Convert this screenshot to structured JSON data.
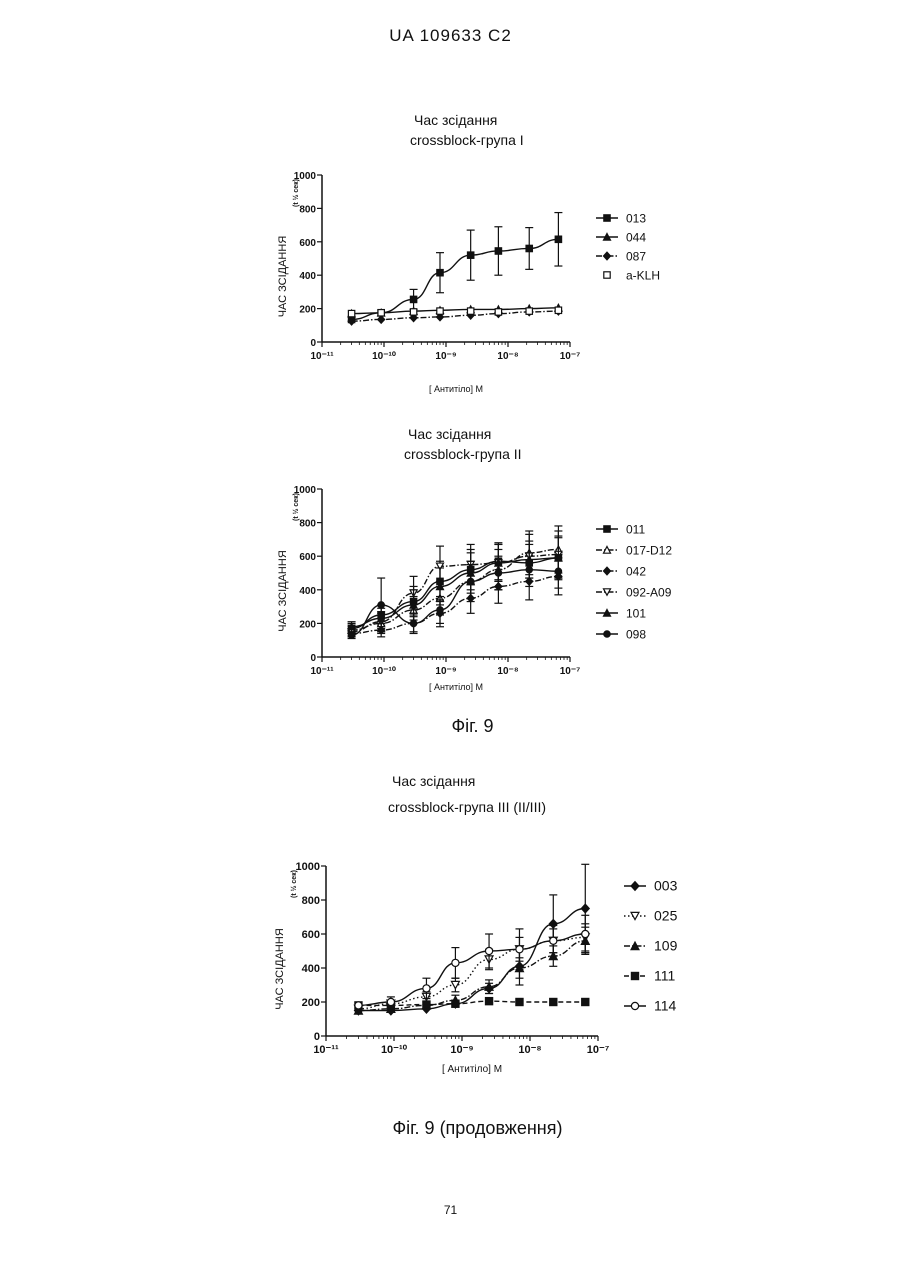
{
  "header": {
    "text": "UA   109633   C2"
  },
  "page_number": "71",
  "captions": {
    "fig": "Фіг. 9",
    "fig_cont": "Фіг. 9 (продовження)"
  },
  "chart_data": [
    {
      "type": "line",
      "title": [
        "Час зсідання",
        "crossblock-група I"
      ],
      "xlabel": "[ Антитіло] М",
      "ylabel": "ЧАС ЗСІДАННЯ",
      "ylabel_unit": "(t ½ сек)",
      "xscale": "log",
      "xlim": [
        1e-11,
        1e-07
      ],
      "ylim": [
        0,
        1000
      ],
      "xticks": [
        "10⁻¹¹",
        "10⁻¹⁰",
        "10⁻⁹",
        "10⁻⁸",
        "10⁻⁷"
      ],
      "yticks": [
        0,
        200,
        400,
        600,
        800,
        1000
      ],
      "x": [
        3e-11,
        9e-11,
        3e-10,
        8e-10,
        2.5e-09,
        7e-09,
        2.2e-08,
        6.5e-08
      ],
      "legend_position": "right",
      "series": [
        {
          "name": "013",
          "marker": "square-filled",
          "dash": "solid",
          "values": [
            135,
            175,
            255,
            415,
            520,
            545,
            560,
            615
          ],
          "errors": [
            0,
            0,
            60,
            120,
            150,
            145,
            125,
            160
          ]
        },
        {
          "name": "044",
          "marker": "triangle-filled",
          "dash": "solid",
          "values": [
            170,
            175,
            185,
            190,
            195,
            195,
            200,
            205
          ],
          "errors": [
            0,
            0,
            0,
            0,
            0,
            0,
            0,
            0
          ]
        },
        {
          "name": "087",
          "marker": "diamond-filled",
          "dash": "dash-dot",
          "values": [
            125,
            135,
            145,
            150,
            160,
            170,
            180,
            185
          ],
          "errors": [
            0,
            0,
            0,
            0,
            0,
            0,
            0,
            0
          ]
        },
        {
          "name": "a-KLH",
          "marker": "square-open",
          "dash": "none",
          "values": [
            170,
            175,
            180,
            185,
            185,
            180,
            185,
            190
          ],
          "errors": [
            0,
            0,
            0,
            0,
            0,
            0,
            0,
            0
          ]
        }
      ]
    },
    {
      "type": "line",
      "title": [
        "Час зсідання",
        "crossblock-група II"
      ],
      "xlabel": "[ Антитіло] М",
      "ylabel": "ЧАС ЗСІДАННЯ",
      "ylabel_unit": "(t ½ сек)",
      "xscale": "log",
      "xlim": [
        1e-11,
        1e-07
      ],
      "ylim": [
        0,
        1000
      ],
      "xticks": [
        "10⁻¹¹",
        "10⁻¹⁰",
        "10⁻⁹",
        "10⁻⁸",
        "10⁻⁷"
      ],
      "yticks": [
        0,
        200,
        400,
        600,
        800,
        1000
      ],
      "x": [
        3e-11,
        9e-11,
        3e-10,
        8e-10,
        2.5e-09,
        7e-09,
        2.2e-08,
        6.5e-08
      ],
      "legend_position": "right",
      "series": [
        {
          "name": "011",
          "marker": "square-filled",
          "dash": "solid",
          "values": [
            170,
            250,
            330,
            450,
            520,
            570,
            560,
            590
          ],
          "errors": [
            30,
            60,
            90,
            120,
            120,
            110,
            110,
            130
          ]
        },
        {
          "name": "017-D12",
          "marker": "triangle-open",
          "dash": "dash-dot",
          "values": [
            160,
            200,
            280,
            350,
            450,
            520,
            620,
            640
          ],
          "errors": [
            30,
            60,
            80,
            100,
            120,
            120,
            130,
            140
          ]
        },
        {
          "name": "042",
          "marker": "diamond-filled",
          "dash": "dash-dot",
          "values": [
            140,
            160,
            200,
            260,
            350,
            420,
            450,
            480
          ],
          "errors": [
            20,
            40,
            60,
            80,
            90,
            100,
            110,
            110
          ]
        },
        {
          "name": "092-A09",
          "marker": "triangle-down-open",
          "dash": "dash-dot",
          "values": [
            150,
            210,
            380,
            540,
            550,
            560,
            600,
            610
          ],
          "errors": [
            30,
            60,
            100,
            120,
            120,
            110,
            130,
            140
          ]
        },
        {
          "name": "101",
          "marker": "triangle-filled",
          "dash": "solid",
          "values": [
            180,
            230,
            310,
            420,
            500,
            560,
            580,
            590
          ],
          "errors": [
            30,
            60,
            90,
            110,
            120,
            110,
            110,
            120
          ]
        },
        {
          "name": "098",
          "marker": "circle-filled",
          "dash": "solid",
          "values": [
            130,
            310,
            200,
            280,
            450,
            500,
            520,
            510
          ],
          "errors": [
            20,
            160,
            50,
            80,
            100,
            100,
            100,
            100
          ]
        }
      ]
    },
    {
      "type": "line",
      "title": [
        "Час зсідання",
        "crossblock-група III (II/III)"
      ],
      "xlabel": "[ Антитіло] М",
      "ylabel": "ЧАС ЗСІДАННЯ",
      "ylabel_unit": "(t ½ сек)",
      "xscale": "log",
      "xlim": [
        1e-11,
        1e-07
      ],
      "ylim": [
        0,
        1000
      ],
      "xticks": [
        "10⁻¹¹",
        "10⁻¹⁰",
        "10⁻⁹",
        "10⁻⁸",
        "10⁻⁷"
      ],
      "yticks": [
        0,
        200,
        400,
        600,
        800,
        1000
      ],
      "x": [
        3e-11,
        9e-11,
        3e-10,
        8e-10,
        2.5e-09,
        7e-09,
        2.2e-08,
        6.5e-08
      ],
      "legend_position": "right",
      "series": [
        {
          "name": "003",
          "marker": "diamond-filled",
          "dash": "solid",
          "values": [
            150,
            150,
            160,
            190,
            280,
            410,
            660,
            750
          ],
          "errors": [
            0,
            0,
            0,
            20,
            30,
            110,
            170,
            260
          ]
        },
        {
          "name": "025",
          "marker": "triangle-down-open",
          "dash": "dotted",
          "values": [
            160,
            190,
            230,
            300,
            450,
            510,
            560,
            580
          ],
          "errors": [
            0,
            20,
            30,
            40,
            60,
            70,
            70,
            80
          ]
        },
        {
          "name": "109",
          "marker": "triangle-filled",
          "dash": "dash-dot",
          "values": [
            150,
            160,
            180,
            210,
            290,
            400,
            470,
            560
          ],
          "errors": [
            0,
            0,
            20,
            30,
            40,
            60,
            60,
            80
          ]
        },
        {
          "name": "111",
          "marker": "square-filled",
          "dash": "dashed",
          "values": [
            180,
            180,
            185,
            190,
            205,
            200,
            200,
            200
          ],
          "errors": [
            0,
            0,
            0,
            0,
            0,
            0,
            0,
            0
          ]
        },
        {
          "name": "114",
          "marker": "circle-open",
          "dash": "solid",
          "values": [
            180,
            200,
            280,
            430,
            500,
            510,
            560,
            600
          ],
          "errors": [
            0,
            30,
            60,
            90,
            100,
            120,
            90,
            110
          ]
        }
      ]
    }
  ]
}
